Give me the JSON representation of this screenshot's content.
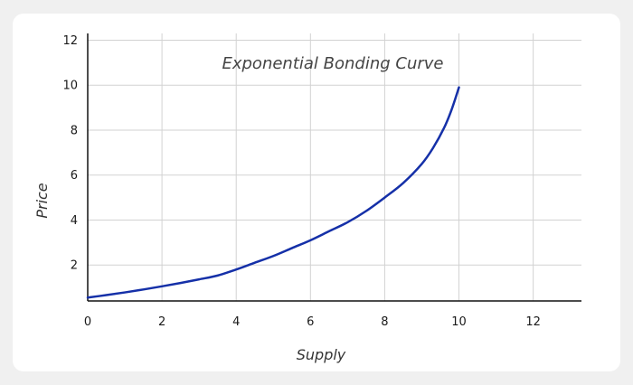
{
  "chart_data": {
    "type": "line",
    "title": "Exponential Bonding Curve",
    "xlabel": "Supply",
    "ylabel": "Price",
    "xlim": [
      0,
      13.3
    ],
    "ylim": [
      0.4,
      12.3
    ],
    "x_ticks": [
      "0",
      "2",
      "4",
      "6",
      "8",
      "10",
      "12"
    ],
    "y_ticks": [
      "2",
      "4",
      "6",
      "8",
      "10",
      "12"
    ],
    "grid": true,
    "series": [
      {
        "color": "#1530a8",
        "x": [
          0,
          0.5,
          1,
          1.5,
          2,
          2.5,
          3,
          3.5,
          4,
          4.5,
          5,
          5.5,
          6,
          6.5,
          7,
          7.5,
          8,
          8.5,
          9,
          9.3,
          9.6,
          9.8,
          10
        ],
        "y": [
          0.55,
          0.66,
          0.78,
          0.91,
          1.05,
          1.2,
          1.36,
          1.53,
          1.8,
          2.1,
          2.4,
          2.75,
          3.1,
          3.5,
          3.9,
          4.4,
          5.0,
          5.65,
          6.5,
          7.2,
          8.1,
          8.9,
          9.9
        ]
      }
    ]
  },
  "colors": {
    "background": "#f0f0f0",
    "card": "#ffffff",
    "grid": "#d2d2d2",
    "axis": "#111111",
    "line": "#1530a8"
  }
}
